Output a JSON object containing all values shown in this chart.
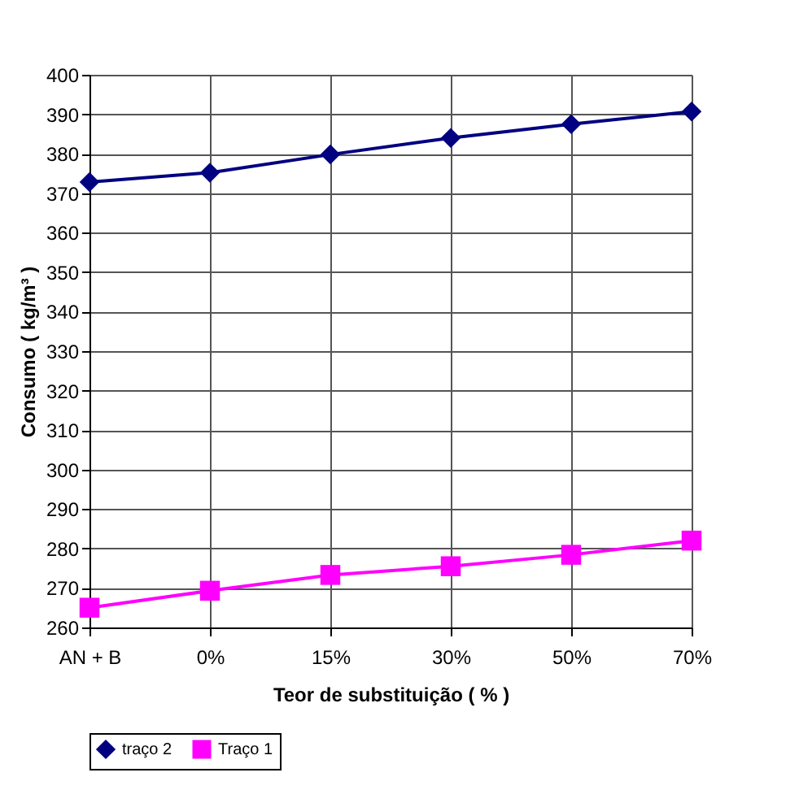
{
  "chart_data": {
    "type": "line",
    "xlabel": "Teor de substituição ( % )",
    "ylabel": "Consumo ( kg/m³ )",
    "categories": [
      "AN + B",
      "0%",
      "15%",
      "30%",
      "50%",
      "70%"
    ],
    "series": [
      {
        "name": "traço 2",
        "color": "#000080",
        "marker": "diamond",
        "values": [
          372.8,
          375.2,
          379.8,
          384.0,
          387.5,
          390.7
        ]
      },
      {
        "name": "Traço 1",
        "color": "#ff00ff",
        "marker": "square",
        "values": [
          265.0,
          269.3,
          273.3,
          275.5,
          278.4,
          282.0
        ]
      }
    ],
    "ylim": [
      260,
      400
    ],
    "yticks": [
      260,
      270,
      280,
      290,
      300,
      310,
      320,
      330,
      340,
      350,
      360,
      370,
      380,
      390,
      400
    ],
    "grid": true,
    "legend": "bottom",
    "line_style": "solid"
  }
}
